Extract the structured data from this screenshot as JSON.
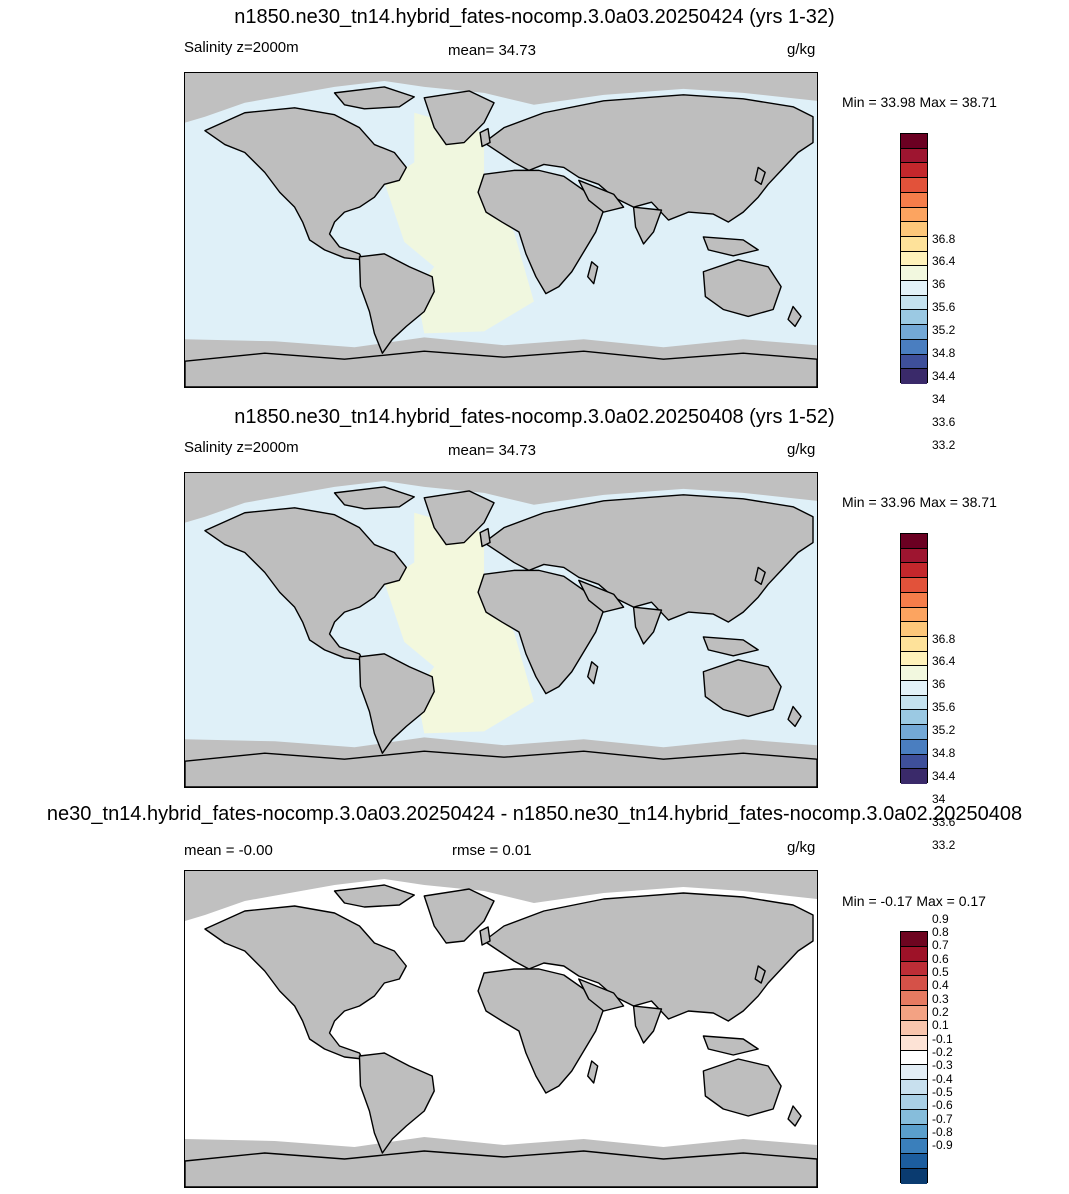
{
  "panels": [
    {
      "title": "n1850.ne30_tn14.hybrid_fates-nocomp.3.0a03.20250424 (yrs 1-32)",
      "left_label": "Salinity z=2000m",
      "center_label": "mean=  34.73",
      "units": "g/kg",
      "minmax": "Min =  33.98 Max =  38.71",
      "ocean_color": "#dff0f8",
      "atlantic_color": "#f0f7df",
      "colorbar": {
        "colors": [
          "#3a2a6a",
          "#3e4f9a",
          "#4a7ec0",
          "#73a8d6",
          "#9bc9e3",
          "#c4e2ef",
          "#e3f2f8",
          "#f2f8df",
          "#fff2ba",
          "#fee29a",
          "#fdc77a",
          "#fca460",
          "#f57d4a",
          "#e2523a",
          "#c4272c",
          "#9e1530",
          "#6b0022"
        ],
        "labels": [
          "36.8",
          "36.4",
          "36",
          "35.6",
          "35.2",
          "34.8",
          "34.4",
          "34",
          "33.6",
          "33.2"
        ]
      }
    },
    {
      "title": "n1850.ne30_tn14.hybrid_fates-nocomp.3.0a02.20250408 (yrs 1-52)",
      "left_label": "Salinity z=2000m",
      "center_label": "mean=  34.73",
      "units": "g/kg",
      "minmax": "Min =  33.96 Max =  38.71",
      "ocean_color": "#dff0f8",
      "atlantic_color": "#f3f8dd",
      "colorbar": {
        "colors": [
          "#3a2a6a",
          "#3e4f9a",
          "#4a7ec0",
          "#73a8d6",
          "#9bc9e3",
          "#c4e2ef",
          "#e3f2f8",
          "#f2f8df",
          "#fff2ba",
          "#fee29a",
          "#fdc77a",
          "#fca460",
          "#f57d4a",
          "#e2523a",
          "#c4272c",
          "#9e1530",
          "#6b0022"
        ],
        "labels": [
          "36.8",
          "36.4",
          "36",
          "35.6",
          "35.2",
          "34.8",
          "34.4",
          "34",
          "33.6",
          "33.2"
        ]
      }
    },
    {
      "title": "ne30_tn14.hybrid_fates-nocomp.3.0a03.20250424 - n1850.ne30_tn14.hybrid_fates-nocomp.3.0a02.20250408",
      "left_label": "mean =  -0.00",
      "center_label": "rmse =   0.01",
      "units": "g/kg",
      "minmax": "Min =  -0.17 Max =   0.17",
      "ocean_color": "#ffffff",
      "atlantic_color": "#ffffff",
      "colorbar": {
        "colors": [
          "#0a3b70",
          "#1c5d9e",
          "#3a7fbb",
          "#5a9fcc",
          "#86bddb",
          "#a9d0e6",
          "#c8e0ee",
          "#e3eef6",
          "#ffffff",
          "#fde3d6",
          "#f9c5ad",
          "#f3a283",
          "#e67a61",
          "#d55148",
          "#bd2d36",
          "#9e1228",
          "#6e0520"
        ],
        "labels": [
          "0.9",
          "0.8",
          "0.7",
          "0.6",
          "0.5",
          "0.4",
          "0.3",
          "0.2",
          "0.1",
          "-0.1",
          "-0.2",
          "-0.3",
          "-0.4",
          "-0.5",
          "-0.6",
          "-0.7",
          "-0.8",
          "-0.9"
        ]
      }
    }
  ]
}
